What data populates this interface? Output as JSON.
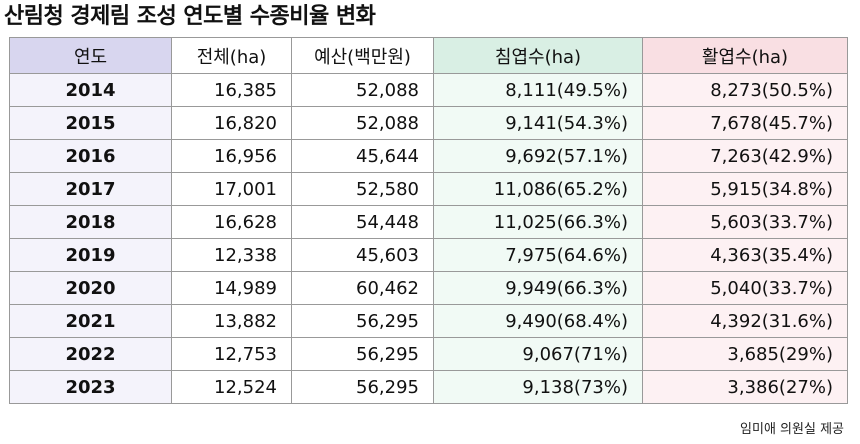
{
  "title": "산림청 경제림 조성 연도별 수종비율 변화",
  "table": {
    "headers": {
      "year": "연도",
      "total": "전체(ha)",
      "budget": "예산(백만원)",
      "conifer": "침엽수(ha)",
      "broadleaf": "활엽수(ha)"
    },
    "rows": [
      {
        "year": "2014",
        "total": "16,385",
        "budget": "52,088",
        "conifer": "8,111(49.5%)",
        "broadleaf": "8,273(50.5%)"
      },
      {
        "year": "2015",
        "total": "16,820",
        "budget": "52,088",
        "conifer": "9,141(54.3%)",
        "broadleaf": "7,678(45.7%)"
      },
      {
        "year": "2016",
        "total": "16,956",
        "budget": "45,644",
        "conifer": "9,692(57.1%)",
        "broadleaf": "7,263(42.9%)"
      },
      {
        "year": "2017",
        "total": "17,001",
        "budget": "52,580",
        "conifer": "11,086(65.2%)",
        "broadleaf": "5,915(34.8%)"
      },
      {
        "year": "2018",
        "total": "16,628",
        "budget": "54,448",
        "conifer": "11,025(66.3%)",
        "broadleaf": "5,603(33.7%)"
      },
      {
        "year": "2019",
        "total": "12,338",
        "budget": "45,603",
        "conifer": "7,975(64.6%)",
        "broadleaf": "4,363(35.4%)"
      },
      {
        "year": "2020",
        "total": "14,989",
        "budget": "60,462",
        "conifer": "9,949(66.3%)",
        "broadleaf": "5,040(33.7%)"
      },
      {
        "year": "2021",
        "total": "13,882",
        "budget": "56,295",
        "conifer": "9,490(68.4%)",
        "broadleaf": "4,392(31.6%)"
      },
      {
        "year": "2022",
        "total": "12,753",
        "budget": "56,295",
        "conifer": "9,067(71%)",
        "broadleaf": "3,685(29%)"
      },
      {
        "year": "2023",
        "total": "12,524",
        "budget": "56,295",
        "conifer": "9,138(73%)",
        "broadleaf": "3,386(27%)"
      }
    ]
  },
  "source": "임미애 의원실 제공",
  "colors": {
    "year_header": "#d8d6ef",
    "conifer_header": "#d9efe4",
    "broadleaf_header": "#f9dfe3",
    "border": "#999999"
  }
}
